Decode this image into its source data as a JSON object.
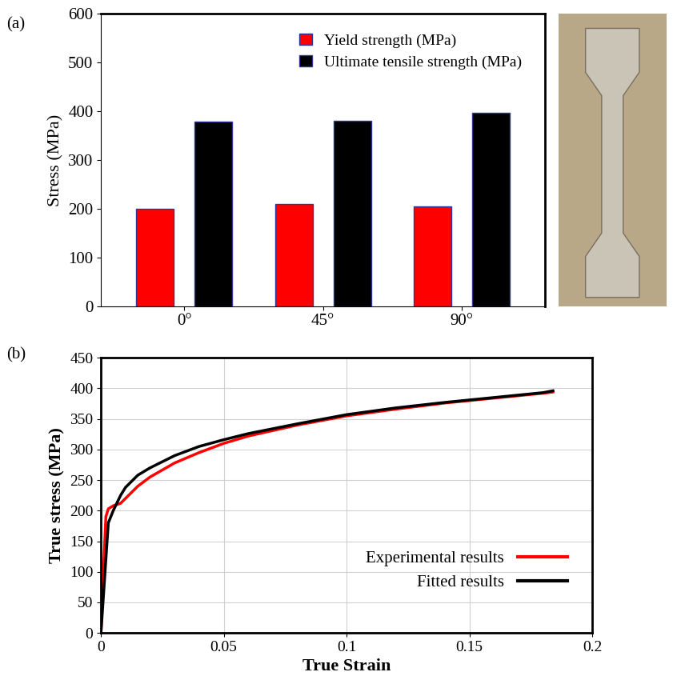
{
  "chart_data": [
    {
      "type": "bar",
      "annotation": "(a)",
      "categories": [
        "0°",
        "45°",
        "90°"
      ],
      "y_label": "Stress (MPa)",
      "series": [
        {
          "name": "Yield strength (MPa)",
          "color": "#ff0000",
          "values": [
            200,
            210,
            205
          ]
        },
        {
          "name": "Ultimate tensile strength (MPa)",
          "color": "#000000",
          "values": [
            378,
            380,
            397
          ]
        }
      ],
      "ylim": [
        0,
        600
      ],
      "yticks": [
        0,
        100,
        200,
        300,
        400,
        500,
        600
      ],
      "legend": "upper right",
      "grid": false
    },
    {
      "type": "line",
      "annotation": "(b)",
      "x_label": "True Strain",
      "y_label": "True stress (MPa)",
      "series": [
        {
          "name": "Experimental results",
          "color": "#ff0000",
          "x": [
            0,
            0.001,
            0.002,
            0.003,
            0.005,
            0.008,
            0.01,
            0.015,
            0.02,
            0.03,
            0.04,
            0.05,
            0.06,
            0.08,
            0.1,
            0.12,
            0.14,
            0.16,
            0.18,
            0.184
          ],
          "values": [
            0,
            100,
            190,
            203,
            208,
            212,
            220,
            240,
            255,
            278,
            295,
            310,
            322,
            340,
            355,
            366,
            376,
            384,
            392,
            394
          ]
        },
        {
          "name": "Fitted results",
          "color": "#000000",
          "x": [
            0,
            0.001,
            0.002,
            0.003,
            0.005,
            0.008,
            0.01,
            0.015,
            0.02,
            0.03,
            0.04,
            0.05,
            0.06,
            0.08,
            0.1,
            0.12,
            0.14,
            0.16,
            0.18,
            0.184
          ],
          "values": [
            0,
            60,
            120,
            180,
            200,
            225,
            238,
            258,
            270,
            290,
            305,
            316,
            326,
            342,
            357,
            368,
            377,
            385,
            393,
            396
          ]
        }
      ],
      "xlim": [
        0,
        0.2
      ],
      "xticks": [
        0,
        0.05,
        0.1,
        0.15,
        0.2
      ],
      "ylim": [
        0,
        450
      ],
      "yticks": [
        0,
        50,
        100,
        150,
        200,
        250,
        300,
        350,
        400,
        450
      ],
      "legend": "lower right",
      "grid": true
    }
  ]
}
